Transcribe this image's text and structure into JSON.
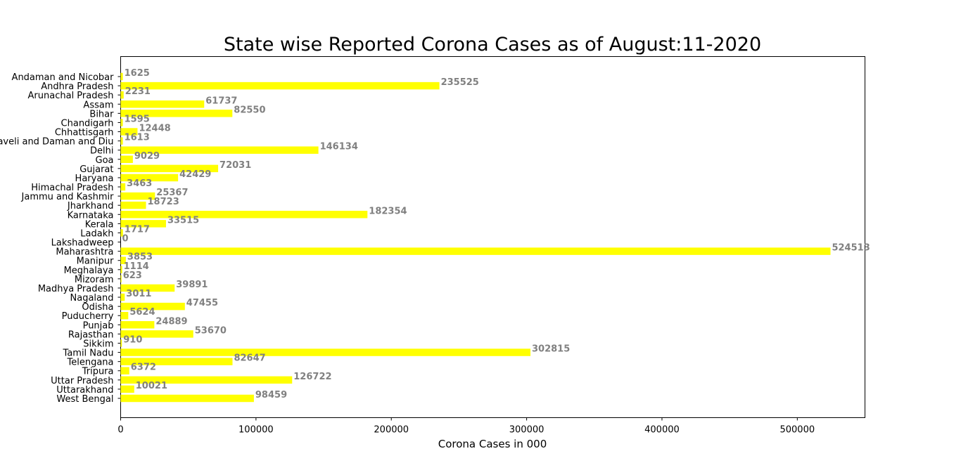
{
  "chart_data": {
    "type": "bar",
    "orientation": "horizontal",
    "title": "State wise Reported Corona Cases as of August:11-2020",
    "xlabel": "Corona Cases in 000",
    "ylabel": "",
    "xlim": [
      0,
      550000
    ],
    "xticks": [
      0,
      100000,
      200000,
      300000,
      400000,
      500000
    ],
    "grid": false,
    "bar_color": "#ffff00",
    "label_color": "#808080",
    "categories": [
      "Andaman and Nicobar",
      "Andhra Pradesh",
      "Arunachal Pradesh",
      "Assam",
      "Bihar",
      "Chandigarh",
      "Chhattisgarh",
      "Dadra Nagar Haveli and Daman and Diu",
      "Delhi",
      "Goa",
      "Gujarat",
      "Haryana",
      "Himachal Pradesh",
      "Jammu and Kashmir",
      "Jharkhand",
      "Karnataka",
      "Kerala",
      "Ladakh",
      "Lakshadweep",
      "Maharashtra",
      "Manipur",
      "Meghalaya",
      "Mizoram",
      "Madhya Pradesh",
      "Nagaland",
      "Odisha",
      "Puducherry",
      "Punjab",
      "Rajasthan",
      "Sikkim",
      "Tamil Nadu",
      "Telengana",
      "Tripura",
      "Uttar Pradesh",
      "Uttarakhand",
      "West Bengal"
    ],
    "values": [
      1625,
      235525,
      2231,
      61737,
      82550,
      1595,
      12448,
      1613,
      146134,
      9029,
      72031,
      42429,
      3463,
      25367,
      18723,
      182354,
      33515,
      1717,
      0,
      524513,
      3853,
      1114,
      623,
      39891,
      3011,
      47455,
      5624,
      24889,
      53670,
      910,
      302815,
      82647,
      6372,
      126722,
      10021,
      98459
    ]
  }
}
